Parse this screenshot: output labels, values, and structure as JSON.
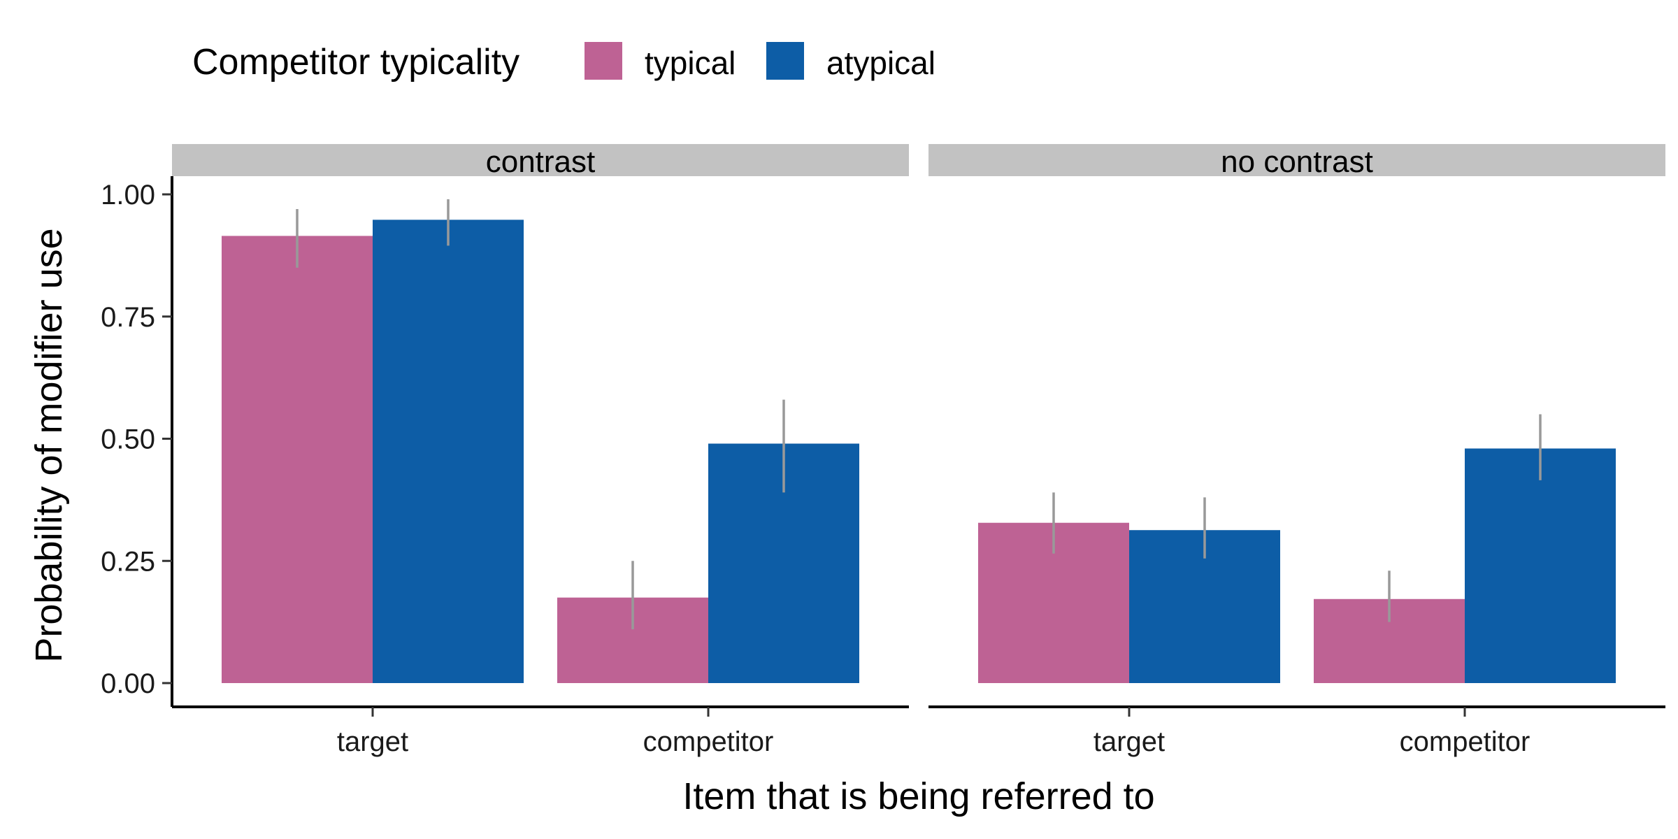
{
  "chart_data": {
    "type": "bar",
    "legend": {
      "title": "Competitor typicality",
      "position": "top-left",
      "entries": [
        {
          "label": "typical",
          "color": "#BE6294"
        },
        {
          "label": "atypical",
          "color": "#0D5DA6"
        }
      ]
    },
    "xlabel": "Item that is being referred to",
    "ylabel": "Probability of modifier use",
    "ylim": [
      0,
      1.05
    ],
    "yticks": [
      "0.00",
      "0.25",
      "0.50",
      "0.75",
      "1.00"
    ],
    "categories": [
      "target",
      "competitor"
    ],
    "error_bar_color": "#999999",
    "panels": [
      {
        "strip": "contrast",
        "series": [
          {
            "name": "typical",
            "values": [
              0.915,
              0.175
            ],
            "err_low": [
              0.85,
              0.11
            ],
            "err_high": [
              0.97,
              0.25
            ]
          },
          {
            "name": "atypical",
            "values": [
              0.948,
              0.49
            ],
            "err_low": [
              0.895,
              0.39
            ],
            "err_high": [
              0.99,
              0.58
            ]
          }
        ]
      },
      {
        "strip": "no contrast",
        "series": [
          {
            "name": "typical",
            "values": [
              0.328,
              0.172
            ],
            "err_low": [
              0.265,
              0.125
            ],
            "err_high": [
              0.39,
              0.23
            ]
          },
          {
            "name": "atypical",
            "values": [
              0.313,
              0.48
            ],
            "err_low": [
              0.255,
              0.415
            ],
            "err_high": [
              0.38,
              0.55
            ]
          }
        ]
      }
    ],
    "grid": false
  }
}
